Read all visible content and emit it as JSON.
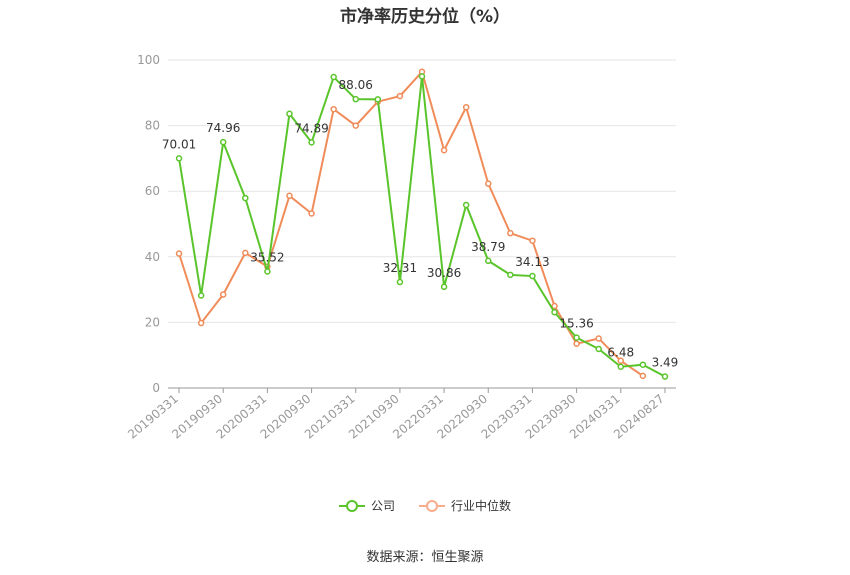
{
  "chart_data": {
    "type": "line",
    "title": "市净率历史分位（%）",
    "ylim": [
      0,
      100
    ],
    "yticks": [
      0,
      20,
      40,
      60,
      80,
      100
    ],
    "x": [
      "20190331",
      "20190630",
      "20190930",
      "20191231",
      "20200331",
      "20200630",
      "20200930",
      "20201231",
      "20210331",
      "20210630",
      "20210930",
      "20211231",
      "20220331",
      "20220630",
      "20220930",
      "20221231",
      "20230331",
      "20230630",
      "20230930",
      "20231231",
      "20240331",
      "20240630",
      "20240827"
    ],
    "xtick_labels": [
      "20190331",
      "20190930",
      "20200331",
      "20200930",
      "20210331",
      "20210930",
      "20220331",
      "20220930",
      "20230331",
      "20230930",
      "20240331",
      "20240827"
    ],
    "series": [
      {
        "name": "公司",
        "color": "#5ac42b",
        "values": [
          70.01,
          28.2,
          74.96,
          57.9,
          35.52,
          83.6,
          74.89,
          94.8,
          88.06,
          88.0,
          32.31,
          95.0,
          30.86,
          55.8,
          38.79,
          34.5,
          34.13,
          23.1,
          15.36,
          11.9,
          6.48,
          7.1,
          3.49
        ],
        "labels": {
          "0": "70.01",
          "2": "74.96",
          "4": "35.52",
          "6": "74.89",
          "8": "88.06",
          "10": "32.31",
          "12": "30.86",
          "14": "38.79",
          "16": "34.13",
          "18": "15.36",
          "20": "6.48",
          "22": "3.49"
        }
      },
      {
        "name": "行业中位数",
        "color": "#f08c5a",
        "values": [
          41.0,
          19.8,
          28.5,
          41.2,
          37.0,
          58.6,
          53.2,
          85.0,
          80.0,
          87.3,
          89.0,
          96.4,
          72.5,
          85.6,
          62.3,
          47.2,
          44.9,
          25.0,
          13.5,
          15.1,
          8.3,
          3.7,
          null
        ]
      }
    ],
    "legend": [
      {
        "name": "公司",
        "color": "#5ac42b"
      },
      {
        "name": "行业中位数",
        "color": "#f8ac8c"
      }
    ],
    "source": "数据来源：恒生聚源"
  }
}
